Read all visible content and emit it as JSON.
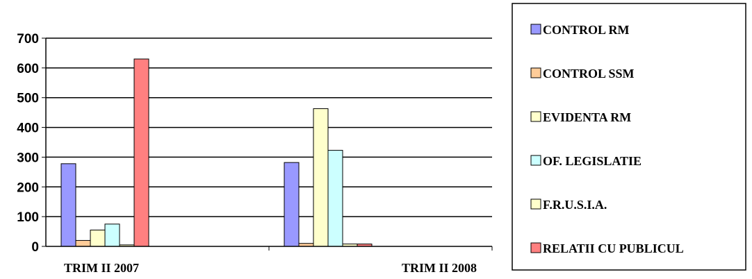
{
  "chart_data": {
    "type": "bar",
    "title": "",
    "xlabel": "",
    "ylabel": "",
    "ylim": [
      0,
      700
    ],
    "yticks": [
      0,
      100,
      200,
      300,
      400,
      500,
      600,
      700
    ],
    "grid": true,
    "legend_position": "right",
    "categories": [
      "TRIM II 2007",
      "TRIM II 2008"
    ],
    "series": [
      {
        "name": "CONTROL RM",
        "color": "#9999ff",
        "values": [
          278,
          282
        ]
      },
      {
        "name": "CONTROL SSM",
        "color": "#ffcc99",
        "values": [
          20,
          10
        ]
      },
      {
        "name": "EVIDENTA RM",
        "color": "#ffffcc",
        "values": [
          55,
          463
        ]
      },
      {
        "name": "OF. LEGISLATIE",
        "color": "#ccffff",
        "values": [
          75,
          323
        ]
      },
      {
        "name": "F.R.U.S.I.A.",
        "color": "#ffffcc",
        "values": [
          5,
          8
        ]
      },
      {
        "name": "RELATII CU PUBLICUL",
        "color": "#ff8080",
        "values": [
          630,
          8
        ]
      }
    ]
  }
}
